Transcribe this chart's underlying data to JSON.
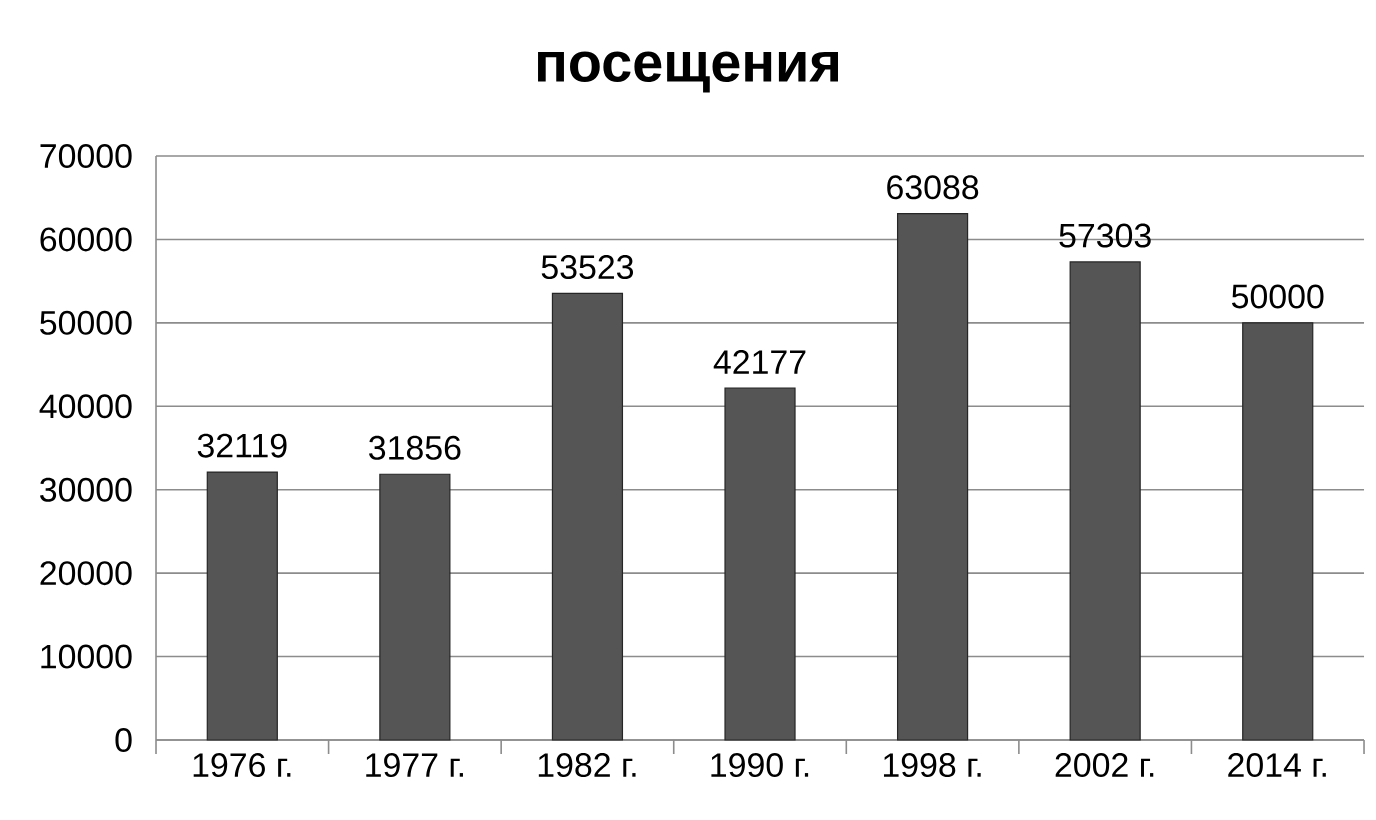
{
  "chart_data": {
    "type": "bar",
    "title": "посещения",
    "categories": [
      "1976 г.",
      "1977 г.",
      "1982 г.",
      "1990 г.",
      "1998 г.",
      "2002 г.",
      "2014 г."
    ],
    "values": [
      32119,
      31856,
      53523,
      42177,
      63088,
      57303,
      50000
    ],
    "color": "#555555",
    "ylim": [
      0,
      70000
    ],
    "yticks": [
      0,
      10000,
      20000,
      30000,
      40000,
      50000,
      60000,
      70000
    ],
    "grid": "y",
    "data_labels": true
  }
}
